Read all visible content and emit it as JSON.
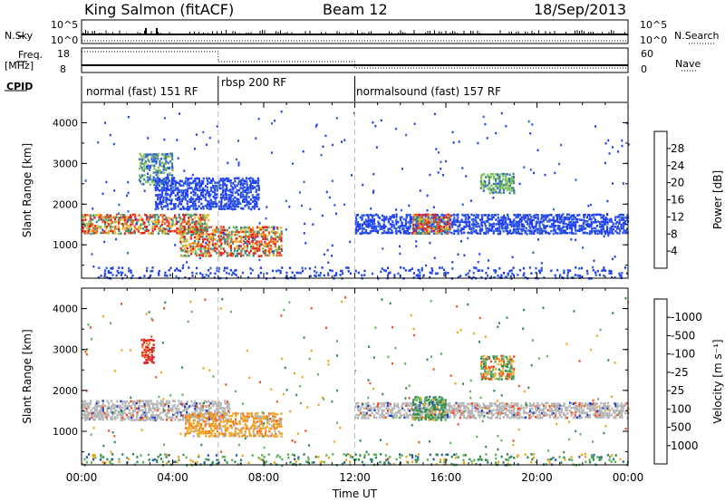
{
  "header": {
    "station": "King Salmon (fitACF)",
    "beam": "Beam 12",
    "date": "18/Sep/2013"
  },
  "panels": {
    "nsky_label": "N.Sky",
    "nsky_ticks": [
      "10^5",
      "10^0"
    ],
    "nsearch_label": "N.Search",
    "nsearch_ticks": [
      "10^5",
      "10^0"
    ],
    "freq_label_line1": "Freq.",
    "freq_label_line2": "[MHz]",
    "freq_ticks": [
      "18",
      "8"
    ],
    "nave_label": "Nave",
    "nave_ticks": [
      "60",
      "0"
    ],
    "cpid_label": "CPID",
    "cpid_segments": [
      {
        "label": "normal (fast) 151 RF",
        "start_hour": 0,
        "end_hour": 6
      },
      {
        "label": "rbsp 200 RF",
        "start_hour": 6,
        "end_hour": 12
      },
      {
        "label": "normalsound (fast) 157 RF",
        "start_hour": 12,
        "end_hour": 24
      }
    ]
  },
  "chart_data": [
    {
      "type": "heatmap",
      "title": "",
      "xlabel": "Time UT",
      "ylabel": "Slant Range [km]",
      "xlim": [
        0,
        24
      ],
      "ylim": [
        180,
        4500
      ],
      "xticks": [
        "00:00",
        "04:00",
        "08:00",
        "12:00",
        "16:00",
        "20:00",
        "00:00"
      ],
      "yticks": [
        1000,
        2000,
        3000,
        4000
      ],
      "colorbar": {
        "label": "Power [dB]",
        "ticks": [
          4,
          8,
          12,
          16,
          20,
          24,
          28
        ],
        "colors": [
          "#1f3ff0",
          "#2f5fd8",
          "#3f8a7a",
          "#5fa36a",
          "#7fc05a",
          "#b5d04a",
          "#f0b21f",
          "#f08a1f",
          "#f05a1f",
          "#e01f1f"
        ]
      },
      "echo_regions": [
        {
          "t0": 0.0,
          "t1": 5.6,
          "r0": 1300,
          "r1": 1800,
          "level": "high"
        },
        {
          "t0": 2.5,
          "t1": 4.0,
          "r0": 2500,
          "r1": 3300,
          "level": "mid"
        },
        {
          "t0": 3.2,
          "t1": 7.8,
          "r0": 1900,
          "r1": 2700,
          "level": "low"
        },
        {
          "t0": 4.3,
          "t1": 8.8,
          "r0": 750,
          "r1": 1500,
          "level": "high"
        },
        {
          "t0": 12.0,
          "t1": 24.0,
          "r0": 1300,
          "r1": 1800,
          "level": "low"
        },
        {
          "t0": 14.5,
          "t1": 16.2,
          "r0": 1300,
          "r1": 1800,
          "level": "high"
        },
        {
          "t0": 17.5,
          "t1": 19.0,
          "r0": 2300,
          "r1": 2800,
          "level": "mid"
        },
        {
          "t0": 0.0,
          "t1": 24.0,
          "r0": 200,
          "r1": 500,
          "level": "low"
        }
      ]
    },
    {
      "type": "heatmap",
      "title": "",
      "xlabel": "Time UT",
      "ylabel": "Slant Range [km]",
      "xlim": [
        0,
        24
      ],
      "ylim": [
        180,
        4500
      ],
      "xticks": [
        "00:00",
        "04:00",
        "08:00",
        "12:00",
        "16:00",
        "20:00",
        "00:00"
      ],
      "yticks": [
        1000,
        2000,
        3000,
        4000
      ],
      "colorbar": {
        "label": "Velocity [m s⁻¹]",
        "ticks": [
          1000,
          500,
          100,
          25,
          -25,
          -100,
          -500,
          -1000
        ],
        "colors": [
          "#1f3fc0",
          "#2f5fa0",
          "#2f8a4f",
          "#5fb05f",
          "#b4b4b4",
          "#f0a31f",
          "#f07a1f",
          "#f04f1f",
          "#e01f1f"
        ]
      },
      "echo_regions": [
        {
          "t0": 0.0,
          "t1": 6.5,
          "r0": 1300,
          "r1": 1800,
          "level": "ground"
        },
        {
          "t0": 2.6,
          "t1": 3.2,
          "r0": 2700,
          "r1": 3300,
          "level": "neg-high"
        },
        {
          "t0": 4.5,
          "t1": 8.8,
          "r0": 900,
          "r1": 1500,
          "level": "neg-low"
        },
        {
          "t0": 12.0,
          "t1": 24.0,
          "r0": 1350,
          "r1": 1750,
          "level": "ground"
        },
        {
          "t0": 14.5,
          "t1": 16.0,
          "r0": 1300,
          "r1": 1900,
          "level": "pos"
        },
        {
          "t0": 17.5,
          "t1": 19.0,
          "r0": 2300,
          "r1": 2900,
          "level": "mixed"
        },
        {
          "t0": 0.0,
          "t1": 24.0,
          "r0": 200,
          "r1": 500,
          "level": "pos"
        }
      ]
    }
  ]
}
